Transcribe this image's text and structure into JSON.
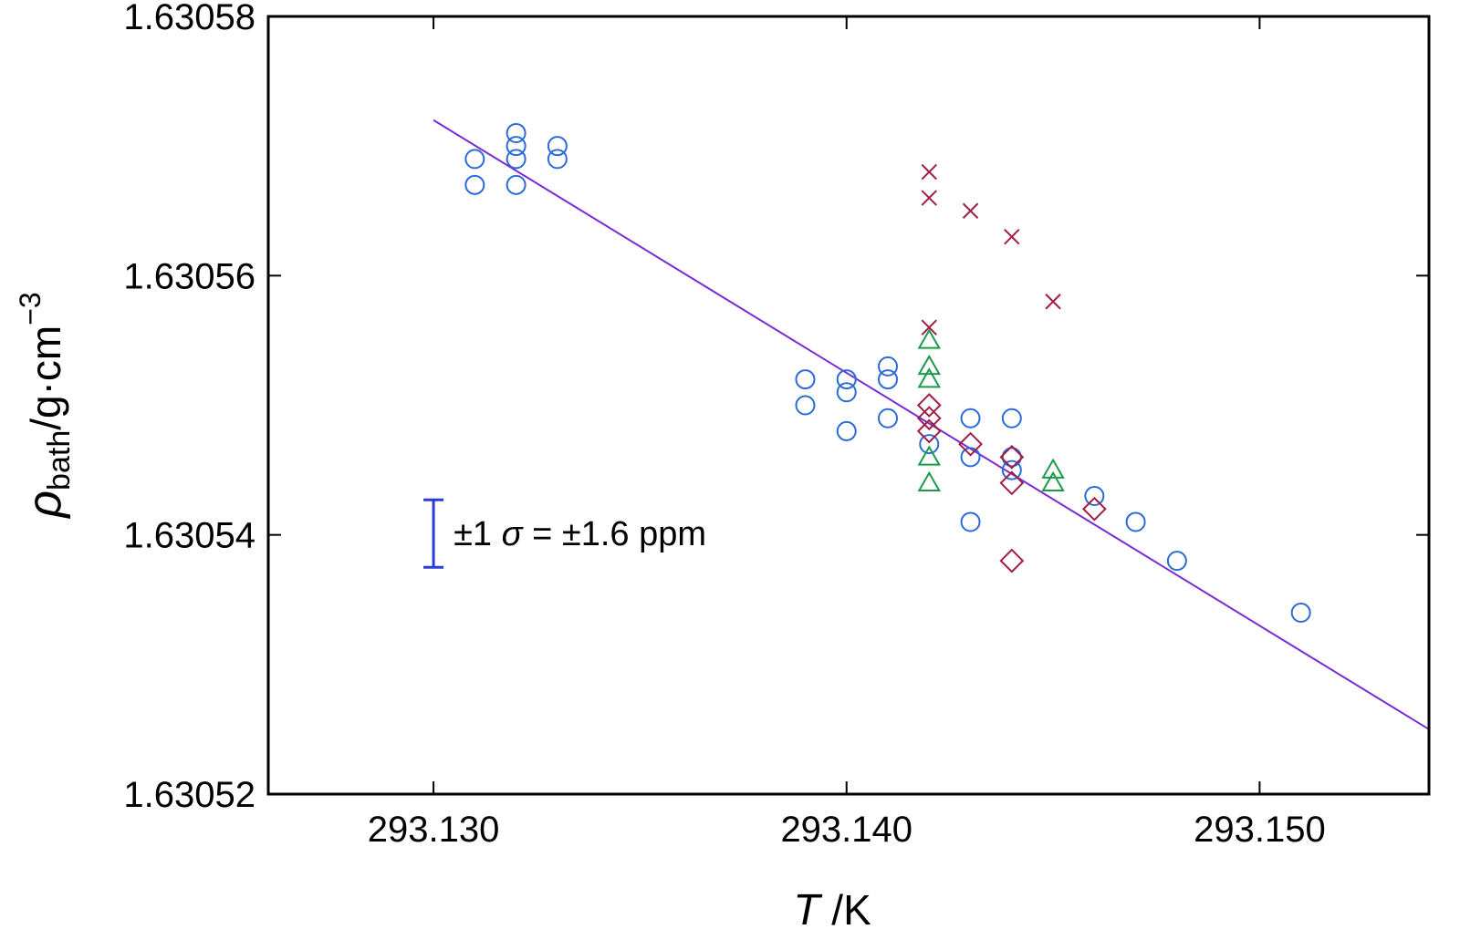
{
  "chart_data": {
    "type": "scatter",
    "title": "",
    "xlabel": {
      "symbol": "T",
      "unit": " /K"
    },
    "ylabel": {
      "symbol": "ρ",
      "subscript": "bath",
      "unit": "/g·cm",
      "superscript": "−3"
    },
    "xlim": [
      293.126,
      293.1541
    ],
    "ylim": [
      1.63052,
      1.63058
    ],
    "x_ticks": [
      293.13,
      293.14,
      293.15
    ],
    "x_tick_labels": [
      "293.130",
      "293.140",
      "293.150"
    ],
    "y_ticks": [
      1.63052,
      1.63054,
      1.63056,
      1.63058
    ],
    "y_tick_labels": [
      "1.63052",
      "1.63054",
      "1.63056",
      "1.63058"
    ],
    "grid": false,
    "fit_line": {
      "x": [
        293.13,
        293.1541
      ],
      "y": [
        1.630572,
        1.630525
      ],
      "color": "#7b2bd6"
    },
    "annotation": {
      "prefix": "±1 ",
      "sigma": "σ",
      "suffix": " = ±1.6 ppm",
      "error_bar_half_width": 2.6e-06,
      "error_bar_x": 293.13,
      "error_bar_center": 1.6305401,
      "color": "#2a3bd8"
    },
    "series": [
      {
        "marker": "circle",
        "color": "#2a6bd8",
        "points": [
          [
            293.131,
            1.630569
          ],
          [
            293.131,
            1.630567
          ],
          [
            293.132,
            1.630571
          ],
          [
            293.132,
            1.63057
          ],
          [
            293.132,
            1.630569
          ],
          [
            293.132,
            1.630567
          ],
          [
            293.133,
            1.63057
          ],
          [
            293.133,
            1.630569
          ],
          [
            293.139,
            1.630552
          ],
          [
            293.139,
            1.63055
          ],
          [
            293.14,
            1.630552
          ],
          [
            293.14,
            1.630551
          ],
          [
            293.14,
            1.630548
          ],
          [
            293.141,
            1.630553
          ],
          [
            293.141,
            1.630552
          ],
          [
            293.141,
            1.630549
          ],
          [
            293.142,
            1.630547
          ],
          [
            293.143,
            1.630549
          ],
          [
            293.143,
            1.630546
          ],
          [
            293.143,
            1.630541
          ],
          [
            293.144,
            1.630549
          ],
          [
            293.144,
            1.630546
          ],
          [
            293.144,
            1.630545
          ],
          [
            293.146,
            1.630543
          ],
          [
            293.147,
            1.630541
          ],
          [
            293.148,
            1.630538
          ],
          [
            293.151,
            1.630534
          ]
        ]
      },
      {
        "marker": "cross",
        "color": "#a11d45",
        "points": [
          [
            293.142,
            1.630568
          ],
          [
            293.142,
            1.630566
          ],
          [
            293.142,
            1.630556
          ],
          [
            293.143,
            1.630565
          ],
          [
            293.144,
            1.630563
          ],
          [
            293.145,
            1.630558
          ]
        ]
      },
      {
        "marker": "triangle",
        "color": "#1a9a4a",
        "points": [
          [
            293.142,
            1.630555
          ],
          [
            293.142,
            1.630553
          ],
          [
            293.142,
            1.630552
          ],
          [
            293.142,
            1.630546
          ],
          [
            293.142,
            1.630544
          ],
          [
            293.145,
            1.630545
          ],
          [
            293.145,
            1.630544
          ]
        ]
      },
      {
        "marker": "diamond",
        "color": "#a11d45",
        "points": [
          [
            293.142,
            1.63055
          ],
          [
            293.142,
            1.630549
          ],
          [
            293.142,
            1.630548
          ],
          [
            293.143,
            1.630547
          ],
          [
            293.144,
            1.630546
          ],
          [
            293.144,
            1.630544
          ],
          [
            293.144,
            1.630538
          ],
          [
            293.146,
            1.630542
          ]
        ]
      }
    ]
  }
}
